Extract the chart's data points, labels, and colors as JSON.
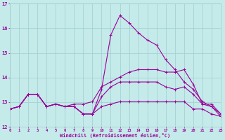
{
  "xlabel": "Windchill (Refroidissement éolien,°C)",
  "ylim": [
    12,
    17
  ],
  "xlim": [
    0,
    23
  ],
  "yticks": [
    12,
    13,
    14,
    15,
    16,
    17
  ],
  "xticks": [
    0,
    1,
    2,
    3,
    4,
    5,
    6,
    7,
    8,
    9,
    10,
    11,
    12,
    13,
    14,
    15,
    16,
    17,
    18,
    19,
    20,
    21,
    22,
    23
  ],
  "background_color": "#c5eaea",
  "grid_color": "#9ecece",
  "line_color": "#990099",
  "line1_x": [
    0,
    1,
    2,
    3,
    4,
    5,
    6,
    7,
    8,
    9,
    10,
    11,
    12,
    13,
    14,
    15,
    16,
    17,
    18,
    19,
    20,
    21,
    22,
    23
  ],
  "line1_y": [
    12.72,
    12.82,
    13.32,
    13.32,
    12.82,
    12.92,
    12.82,
    12.82,
    12.52,
    12.52,
    12.82,
    12.92,
    13.02,
    13.02,
    13.02,
    13.02,
    13.02,
    13.02,
    13.02,
    13.02,
    12.72,
    12.72,
    12.52,
    12.42
  ],
  "line2_x": [
    0,
    1,
    2,
    3,
    4,
    5,
    6,
    7,
    8,
    9,
    10,
    11,
    12,
    13,
    14,
    15,
    16,
    17,
    18,
    19,
    20,
    21,
    22,
    23
  ],
  "line2_y": [
    12.72,
    12.82,
    13.32,
    13.32,
    12.82,
    12.92,
    12.82,
    12.82,
    12.52,
    12.52,
    13.22,
    13.62,
    13.82,
    13.82,
    13.82,
    13.82,
    13.82,
    13.62,
    13.52,
    13.62,
    13.32,
    12.92,
    12.82,
    12.42
  ],
  "line3_x": [
    0,
    1,
    2,
    3,
    4,
    5,
    6,
    7,
    8,
    9,
    10,
    11,
    12,
    13,
    14,
    15,
    16,
    17,
    18,
    19,
    20,
    21,
    22,
    23
  ],
  "line3_y": [
    12.72,
    12.82,
    13.32,
    13.32,
    12.82,
    12.92,
    12.82,
    12.92,
    12.92,
    13.02,
    13.62,
    13.82,
    14.02,
    14.22,
    14.32,
    14.32,
    14.32,
    14.22,
    14.22,
    14.32,
    13.72,
    12.92,
    12.92,
    12.52
  ],
  "line4_x": [
    0,
    1,
    2,
    3,
    4,
    5,
    6,
    7,
    8,
    9,
    10,
    11,
    12,
    13,
    14,
    15,
    16,
    17,
    18,
    19,
    20,
    21,
    22,
    23
  ],
  "line4_y": [
    12.72,
    12.82,
    13.32,
    13.32,
    12.82,
    12.92,
    12.82,
    12.82,
    12.52,
    12.52,
    13.52,
    15.72,
    16.52,
    16.22,
    15.82,
    15.52,
    15.32,
    14.72,
    14.32,
    13.82,
    13.52,
    13.02,
    12.82,
    12.52
  ]
}
